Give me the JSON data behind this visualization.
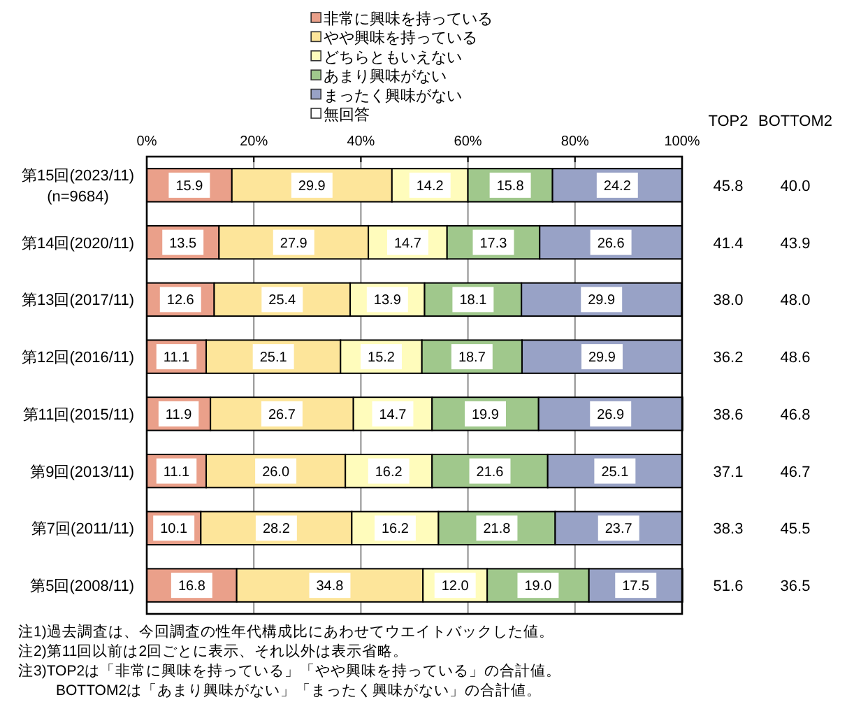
{
  "chart_data": [
    {
      "type": "bar",
      "orientation": "horizontal",
      "stacked": true,
      "categories": [
        "第15回(2023/11)\n(n=9684)",
        "第14回(2020/11)",
        "第13回(2017/11)",
        "第12回(2016/11)",
        "第11回(2015/11)",
        "第9回(2013/11)",
        "第7回(2011/11)",
        "第5回(2008/11)"
      ],
      "series": [
        {
          "name": "非常に興味を持っている",
          "color": "#eaa08a",
          "values": [
            15.9,
            13.5,
            12.6,
            11.1,
            11.9,
            11.1,
            10.1,
            16.8
          ],
          "value_labels": [
            "15.9",
            "13.5",
            "12.6",
            "11.1",
            "11.9",
            "11.1",
            "10.1",
            "16.8"
          ]
        },
        {
          "name": "やや興味を持っている",
          "color": "#fde59a",
          "values": [
            29.9,
            27.9,
            25.4,
            25.1,
            26.7,
            26.0,
            28.2,
            34.8
          ],
          "value_labels": [
            "29.9",
            "27.9",
            "25.4",
            "25.1",
            "26.7",
            "26.0",
            "28.2",
            "34.8"
          ]
        },
        {
          "name": "どちらともいえない",
          "color": "#fffcbc",
          "values": [
            14.2,
            14.7,
            13.9,
            15.2,
            14.7,
            16.2,
            16.2,
            12.0
          ],
          "value_labels": [
            "14.2",
            "14.7",
            "13.9",
            "15.2",
            "14.7",
            "16.2",
            "16.2",
            "12.0"
          ]
        },
        {
          "name": "あまり興味がない",
          "color": "#a0c88c",
          "values": [
            15.8,
            17.3,
            18.1,
            18.7,
            19.9,
            21.6,
            21.8,
            19.0
          ],
          "value_labels": [
            "15.8",
            "17.3",
            "18.1",
            "18.7",
            "19.9",
            "21.6",
            "21.8",
            "19.0"
          ]
        },
        {
          "name": "まったく興味がない",
          "color": "#98a2c6",
          "values": [
            24.2,
            26.6,
            29.9,
            29.9,
            26.9,
            25.1,
            23.7,
            17.5
          ],
          "value_labels": [
            "24.2",
            "26.6",
            "29.9",
            "29.9",
            "26.9",
            "25.1",
            "23.7",
            "17.5"
          ]
        },
        {
          "name": "無回答",
          "color": "#ffffff",
          "values": [
            null,
            null,
            null,
            null,
            null,
            null,
            null,
            null
          ]
        }
      ],
      "xlim": [
        0,
        100
      ],
      "xticks": [
        {
          "value": 0,
          "label": "0%"
        },
        {
          "value": 20,
          "label": "20%"
        },
        {
          "value": 40,
          "label": "40%"
        },
        {
          "value": 60,
          "label": "60%"
        },
        {
          "value": 80,
          "label": "80%"
        },
        {
          "value": 100,
          "label": "100%"
        }
      ],
      "grid": "x",
      "legend": "top",
      "annotations": [
        "注1)過去調査は、今回調査の性年代構成比にあわせてウエイトバックした値。",
        "注2)第11回以前は2回ごとに表示、それ以外は表示省略。",
        "注3)TOP2は「非常に興味を持っている」「やや興味を持っている」の合計値。\nBOTTOM2は「あまり興味がない」「まったく興味がない」の合計値。"
      ]
    },
    {
      "type": "heatmap",
      "categories": [
        "TOP2",
        "BOTTOM2"
      ],
      "y_categories": [
        null,
        null,
        null,
        null,
        null,
        null,
        null,
        null
      ],
      "cells": [
        [
          45.8,
          40.0
        ],
        [
          41.4,
          43.9
        ],
        [
          38.0,
          48.0
        ],
        [
          36.2,
          48.6
        ],
        [
          38.6,
          46.8
        ],
        [
          37.1,
          46.7
        ],
        [
          38.3,
          45.5
        ],
        [
          51.6,
          36.5
        ]
      ],
      "cell_labels": [
        [
          "45.8",
          "40.0"
        ],
        [
          "41.4",
          "43.9"
        ],
        [
          "38.0",
          "48.0"
        ],
        [
          "36.2",
          "48.6"
        ],
        [
          "38.6",
          "46.8"
        ],
        [
          "37.1",
          "46.7"
        ],
        [
          "38.3",
          "45.5"
        ],
        [
          "51.6",
          "36.5"
        ]
      ]
    }
  ]
}
